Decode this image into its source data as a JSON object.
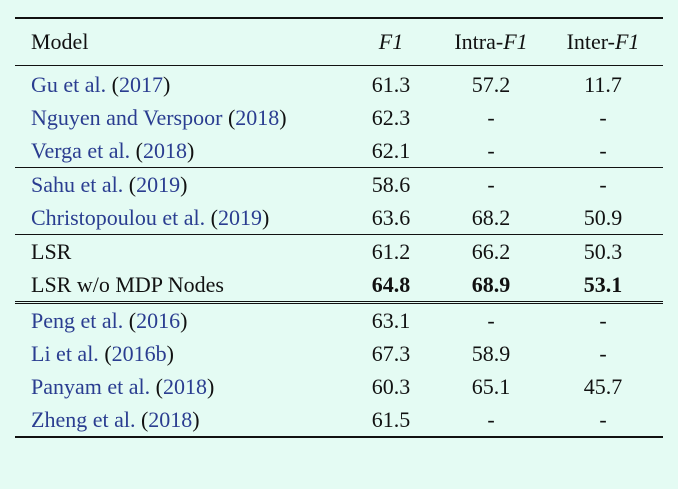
{
  "table": {
    "headers": {
      "model": "Model",
      "f1": "F1",
      "intra_prefix": "Intra-",
      "intra_f1": "F1",
      "inter_prefix": "Inter-",
      "inter_f1": "F1"
    },
    "rows": [
      {
        "name": "Gu et al.",
        "year": "2017",
        "f1": "61.3",
        "intra": "57.2",
        "inter": "11.7"
      },
      {
        "name": "Nguyen and Verspoor",
        "year": "2018",
        "f1": "62.3",
        "intra": "-",
        "inter": "-"
      },
      {
        "name": "Verga et al.",
        "year": "2018",
        "f1": "62.1",
        "intra": "-",
        "inter": "-"
      },
      {
        "name": "Sahu et al.",
        "year": "2019",
        "f1": "58.6",
        "intra": "-",
        "inter": "-"
      },
      {
        "name": "Christopoulou et al.",
        "year": "2019",
        "f1": "63.6",
        "intra": "68.2",
        "inter": "50.9"
      },
      {
        "name": "LSR",
        "f1": "61.2",
        "intra": "66.2",
        "inter": "50.3"
      },
      {
        "name": "LSR w/o MDP Nodes",
        "f1": "64.8",
        "intra": "68.9",
        "inter": "53.1"
      },
      {
        "name": "Peng et al.",
        "year": "2016",
        "f1": "63.1",
        "intra": "-",
        "inter": "-"
      },
      {
        "name": "Li et al.",
        "year": "2016b",
        "f1": "67.3",
        "intra": "58.9",
        "inter": "-"
      },
      {
        "name": "Panyam et al.",
        "year": "2018",
        "f1": "60.3",
        "intra": "65.1",
        "inter": "45.7"
      },
      {
        "name": "Zheng et al.",
        "year": "2018",
        "f1": "61.5",
        "intra": "-",
        "inter": "-"
      }
    ]
  },
  "colors": {
    "background": "#e4fbf3",
    "citation": "#2a3d90",
    "text": "#111111"
  }
}
